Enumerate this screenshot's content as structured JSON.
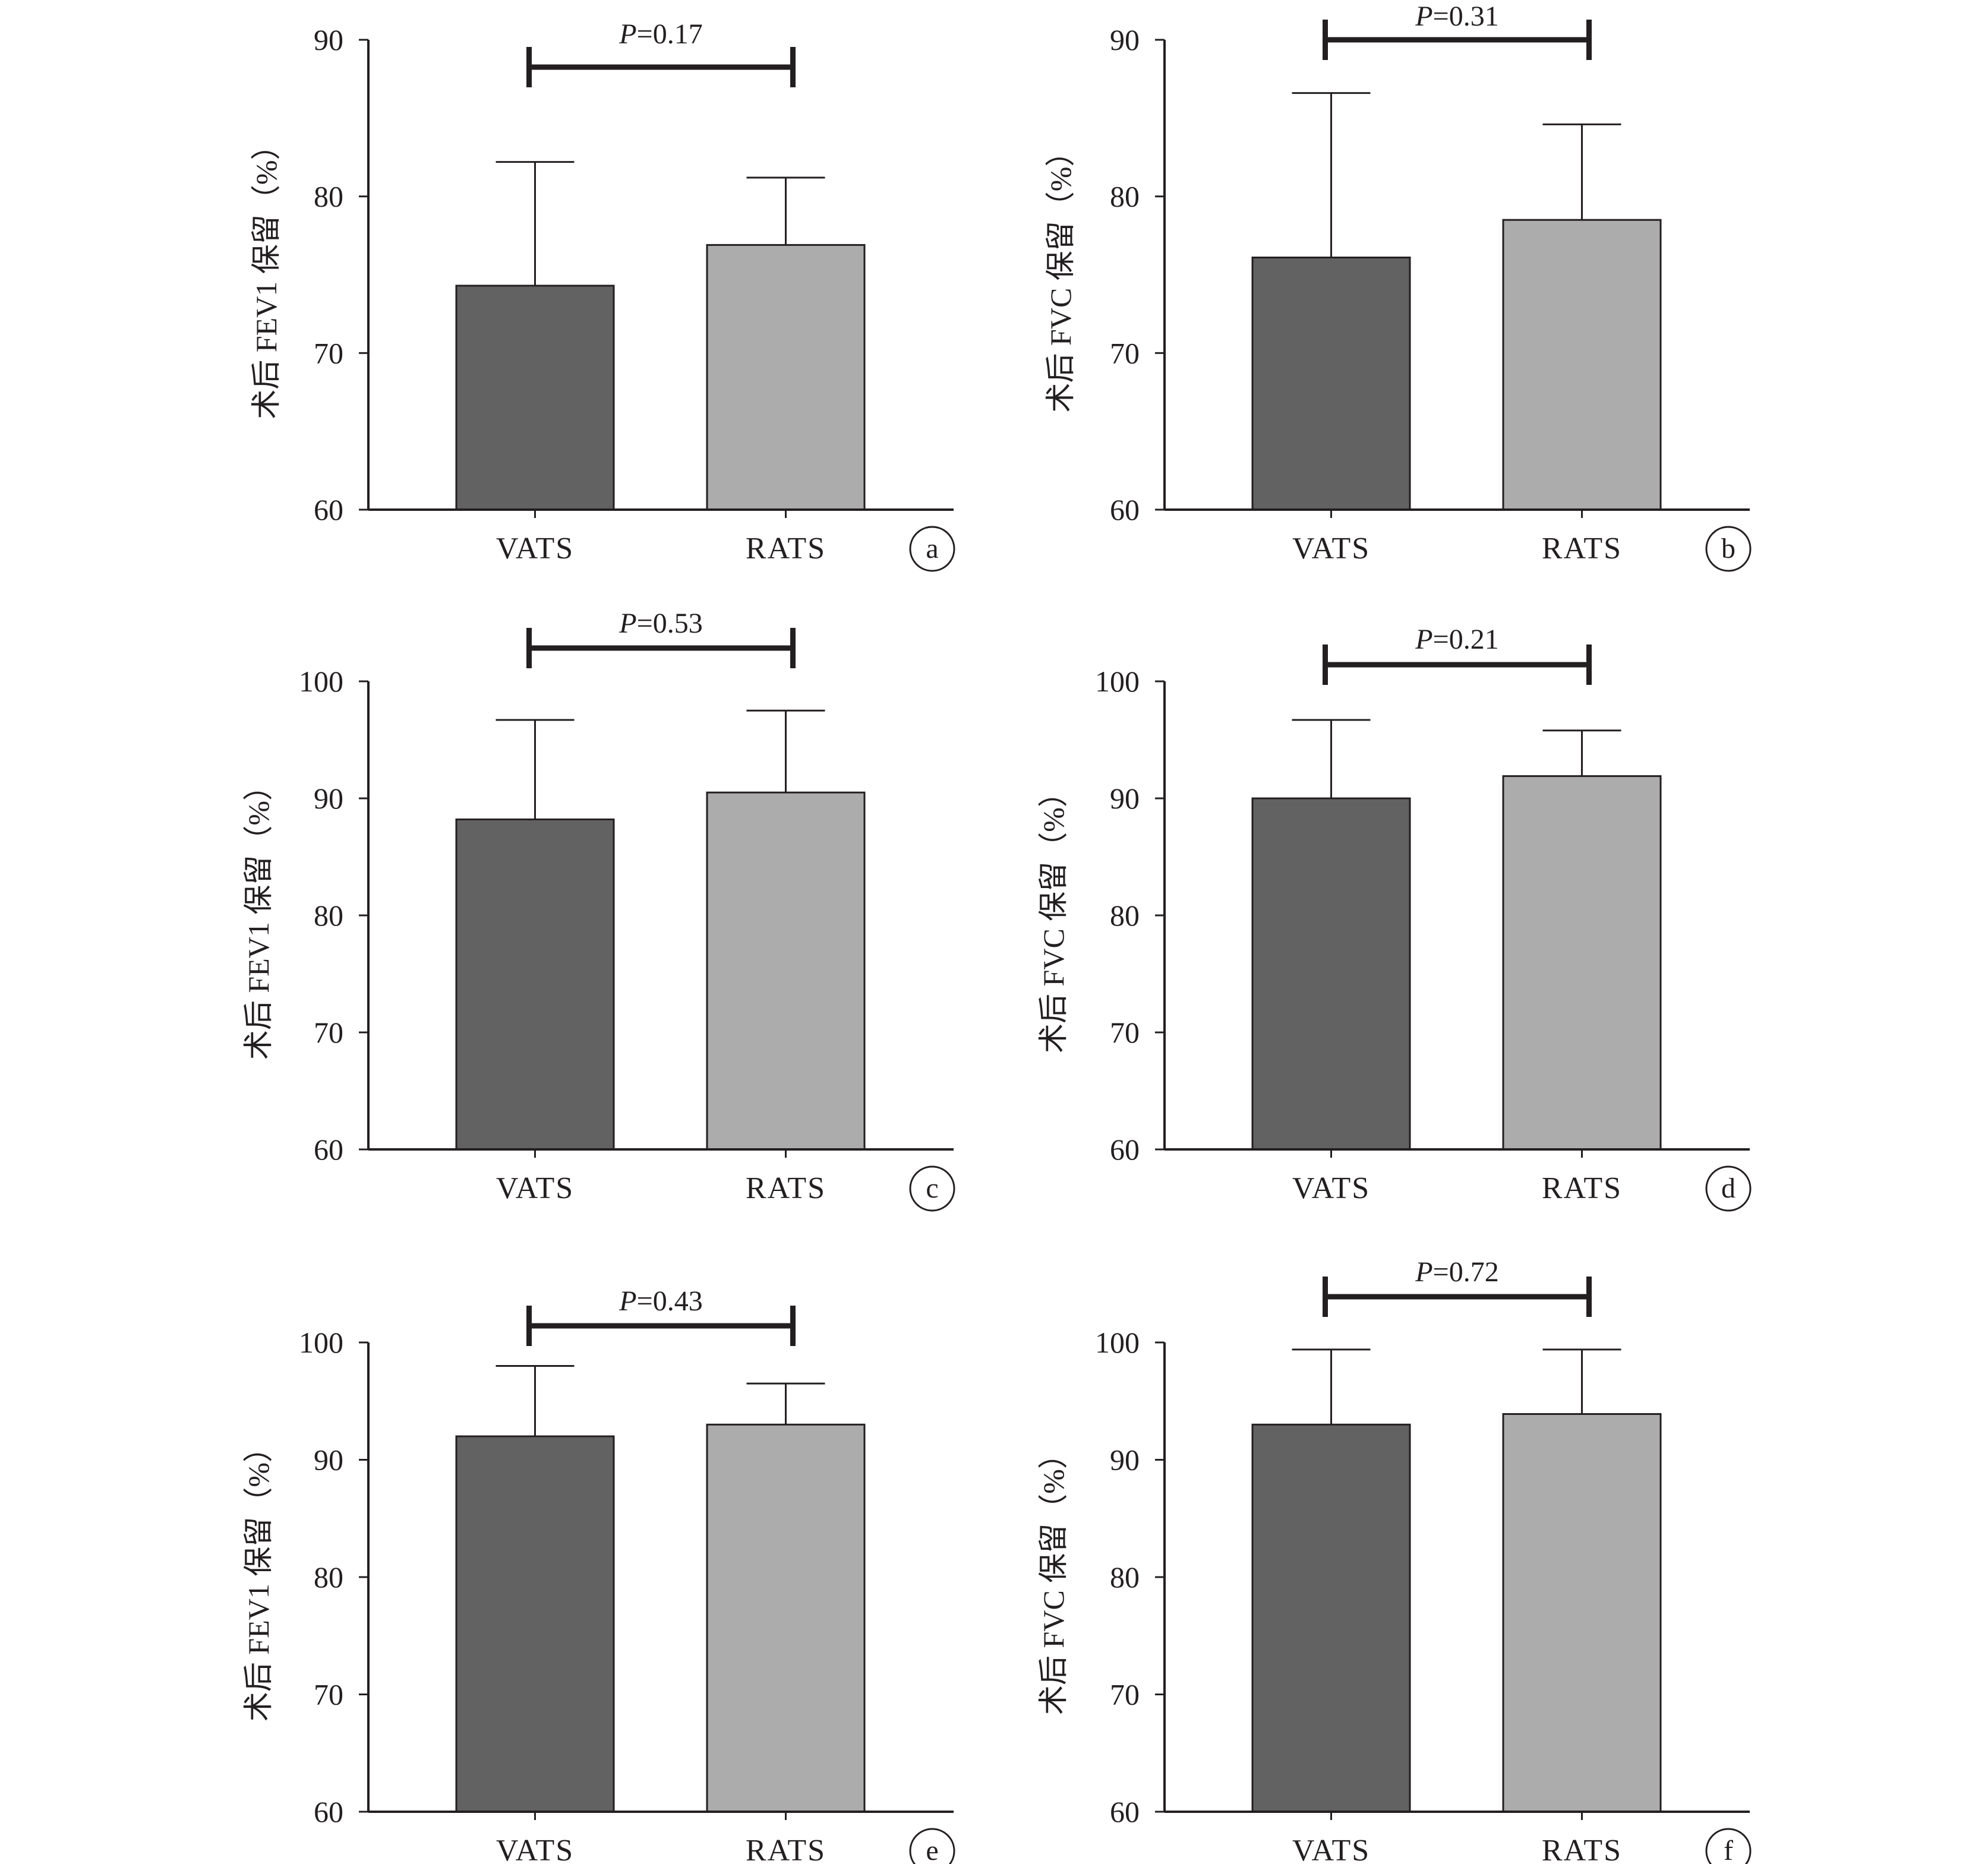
{
  "colors": {
    "vats": "#636262",
    "rats": "#adacac",
    "axis": "#231f20",
    "sig_bar": "#231f20",
    "background": "#ffffff"
  },
  "chart_data": [
    {
      "panel": "a",
      "type": "bar",
      "categories": [
        "VATS",
        "RATS"
      ],
      "values": [
        74.3,
        76.9
      ],
      "errors": [
        7.9,
        4.3
      ],
      "ylabel": "术后 FEV1 保留（%）",
      "ylim": [
        60,
        90
      ],
      "yticks": [
        "60",
        "70",
        "80",
        "90"
      ],
      "p_label": "P",
      "p_value": "=0.17",
      "grid": false
    },
    {
      "panel": "b",
      "type": "bar",
      "categories": [
        "VATS",
        "RATS"
      ],
      "values": [
        76.1,
        78.5
      ],
      "errors": [
        10.5,
        6.1
      ],
      "ylabel": "术后 FVC 保留（%）",
      "ylim": [
        60,
        90
      ],
      "yticks": [
        "60",
        "70",
        "80",
        "90"
      ],
      "p_label": "P",
      "p_value": "=0.31",
      "grid": false
    },
    {
      "panel": "c",
      "type": "bar",
      "categories": [
        "VATS",
        "RATS"
      ],
      "values": [
        88.2,
        90.5
      ],
      "errors": [
        8.5,
        7.0
      ],
      "ylabel": "术后 FEV1 保留（%）",
      "ylim": [
        60,
        100
      ],
      "yticks": [
        "60",
        "70",
        "80",
        "90",
        "100"
      ],
      "p_label": "P",
      "p_value": "=0.53",
      "grid": false
    },
    {
      "panel": "d",
      "type": "bar",
      "categories": [
        "VATS",
        "RATS"
      ],
      "values": [
        90.0,
        91.9
      ],
      "errors": [
        6.7,
        3.9
      ],
      "ylabel": "术后 FVC 保留（%）",
      "ylim": [
        60,
        100
      ],
      "yticks": [
        "60",
        "70",
        "80",
        "90",
        "100"
      ],
      "p_label": "P",
      "p_value": "=0.21",
      "grid": false
    },
    {
      "panel": "e",
      "type": "bar",
      "categories": [
        "VATS",
        "RATS"
      ],
      "values": [
        92.0,
        93.0
      ],
      "errors": [
        6.0,
        3.5
      ],
      "ylabel": "术后 FEV1 保留（%）",
      "ylim": [
        60,
        100
      ],
      "yticks": [
        "60",
        "70",
        "80",
        "90",
        "100"
      ],
      "p_label": "P",
      "p_value": "=0.43",
      "grid": false
    },
    {
      "panel": "f",
      "type": "bar",
      "categories": [
        "VATS",
        "RATS"
      ],
      "values": [
        93.0,
        93.9
      ],
      "errors": [
        6.4,
        5.5
      ],
      "ylabel": "术后 FVC 保留（%）",
      "ylim": [
        60,
        100
      ],
      "yticks": [
        "60",
        "70",
        "80",
        "90",
        "100"
      ],
      "p_label": "P",
      "p_value": "=0.72",
      "grid": false
    }
  ]
}
